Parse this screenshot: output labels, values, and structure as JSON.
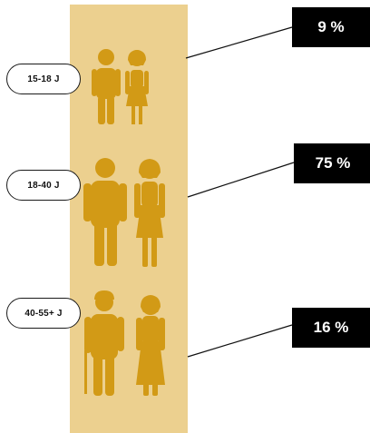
{
  "colors": {
    "panel": "#ecd08f",
    "figure": "#d29a16",
    "box": "#000000",
    "box_text": "#ffffff"
  },
  "groups": [
    {
      "age": "15-18 J",
      "percent": "9 %"
    },
    {
      "age": "18-40 J",
      "percent": "75 %"
    },
    {
      "age": "40-55+ J",
      "percent": "16 %"
    }
  ]
}
